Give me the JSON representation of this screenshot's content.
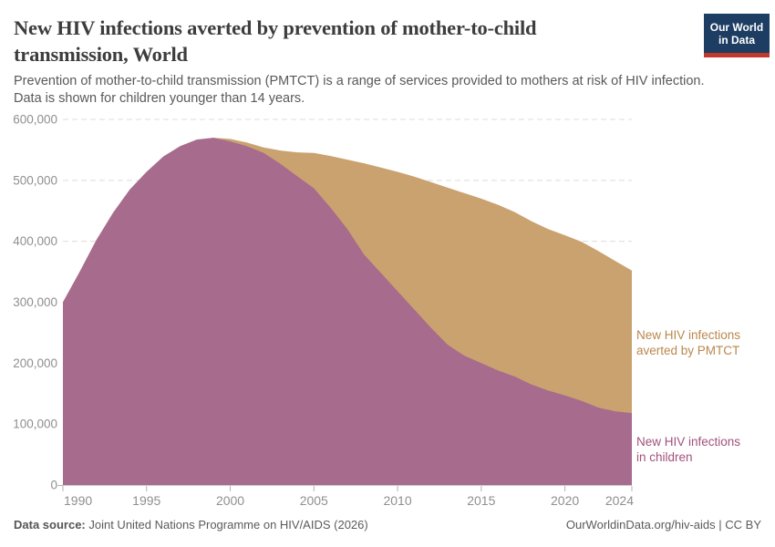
{
  "header": {
    "title_lines": [
      "New HIV infections averted by prevention of mother-to-child",
      "transmission, World"
    ],
    "subtitle_lines": [
      "Prevention of mother-to-child transmission (PMTCT) is a range of services provided to mothers at risk of HIV infection.",
      "Data is shown for children younger than 14 years."
    ],
    "logo": {
      "line1": "Our World",
      "line2": "in Data",
      "bg_color": "#1d3d63",
      "bar_color": "#c0392b"
    }
  },
  "chart_data": {
    "type": "area",
    "stacked": true,
    "title": "New HIV infections averted by prevention of mother-to-child transmission, World",
    "xlabel": "",
    "ylabel": "",
    "x": [
      1990,
      1991,
      1992,
      1993,
      1994,
      1995,
      1996,
      1997,
      1998,
      1999,
      2000,
      2001,
      2002,
      2003,
      2004,
      2005,
      2006,
      2007,
      2008,
      2009,
      2010,
      2011,
      2012,
      2013,
      2014,
      2015,
      2016,
      2017,
      2018,
      2019,
      2020,
      2021,
      2022,
      2023,
      2024
    ],
    "series": [
      {
        "name": "New HIV infections in children",
        "area_color": "#a76b8d",
        "label_color": "#a1527b",
        "values": [
          300000,
          350000,
          402000,
          447000,
          485000,
          514000,
          539000,
          556000,
          567000,
          570000,
          564000,
          556000,
          545000,
          527000,
          507000,
          487000,
          455000,
          420000,
          378000,
          348000,
          318000,
          288000,
          258000,
          230000,
          212000,
          200000,
          188000,
          178000,
          165000,
          155000,
          147000,
          138000,
          127000,
          121000,
          118000
        ]
      },
      {
        "name": "New HIV infections averted by PMTCT",
        "area_color": "#c9a26f",
        "label_color": "#b9874d",
        "values": [
          0,
          0,
          0,
          0,
          0,
          0,
          0,
          0,
          0,
          0,
          4000,
          6000,
          9000,
          22000,
          39000,
          58000,
          85000,
          114000,
          150000,
          173000,
          196000,
          218000,
          239000,
          258000,
          267000,
          270000,
          272000,
          270000,
          268000,
          265000,
          263000,
          261000,
          257000,
          247000,
          234000
        ]
      }
    ],
    "ylim": [
      0,
      600000
    ],
    "ytick_values": [
      0,
      100000,
      200000,
      300000,
      400000,
      500000,
      600000
    ],
    "ytick_labels": [
      "0",
      "100,000",
      "200,000",
      "300,000",
      "400,000",
      "500,000",
      "600,000"
    ],
    "xtick_labels": [
      "1990",
      "1995",
      "2000",
      "2005",
      "2010",
      "2015",
      "2020",
      "2024"
    ],
    "grid": "horizontal-dashed",
    "legend_position": "right-annotations",
    "colors": {
      "grid": "#dcdcdc",
      "axis": "#b3b3b3",
      "tick_text": "#8f8f8f"
    }
  },
  "annotations": {
    "averted_line1": "New HIV infections",
    "averted_line2": "averted by PMTCT",
    "children_line1": "New HIV infections",
    "children_line2": "in children"
  },
  "footer": {
    "source_label": "Data source:",
    "source_text": " Joint United Nations Programme on HIV/AIDS (2026)",
    "link_text": "OurWorldinData.org/hiv-aids | CC BY"
  }
}
